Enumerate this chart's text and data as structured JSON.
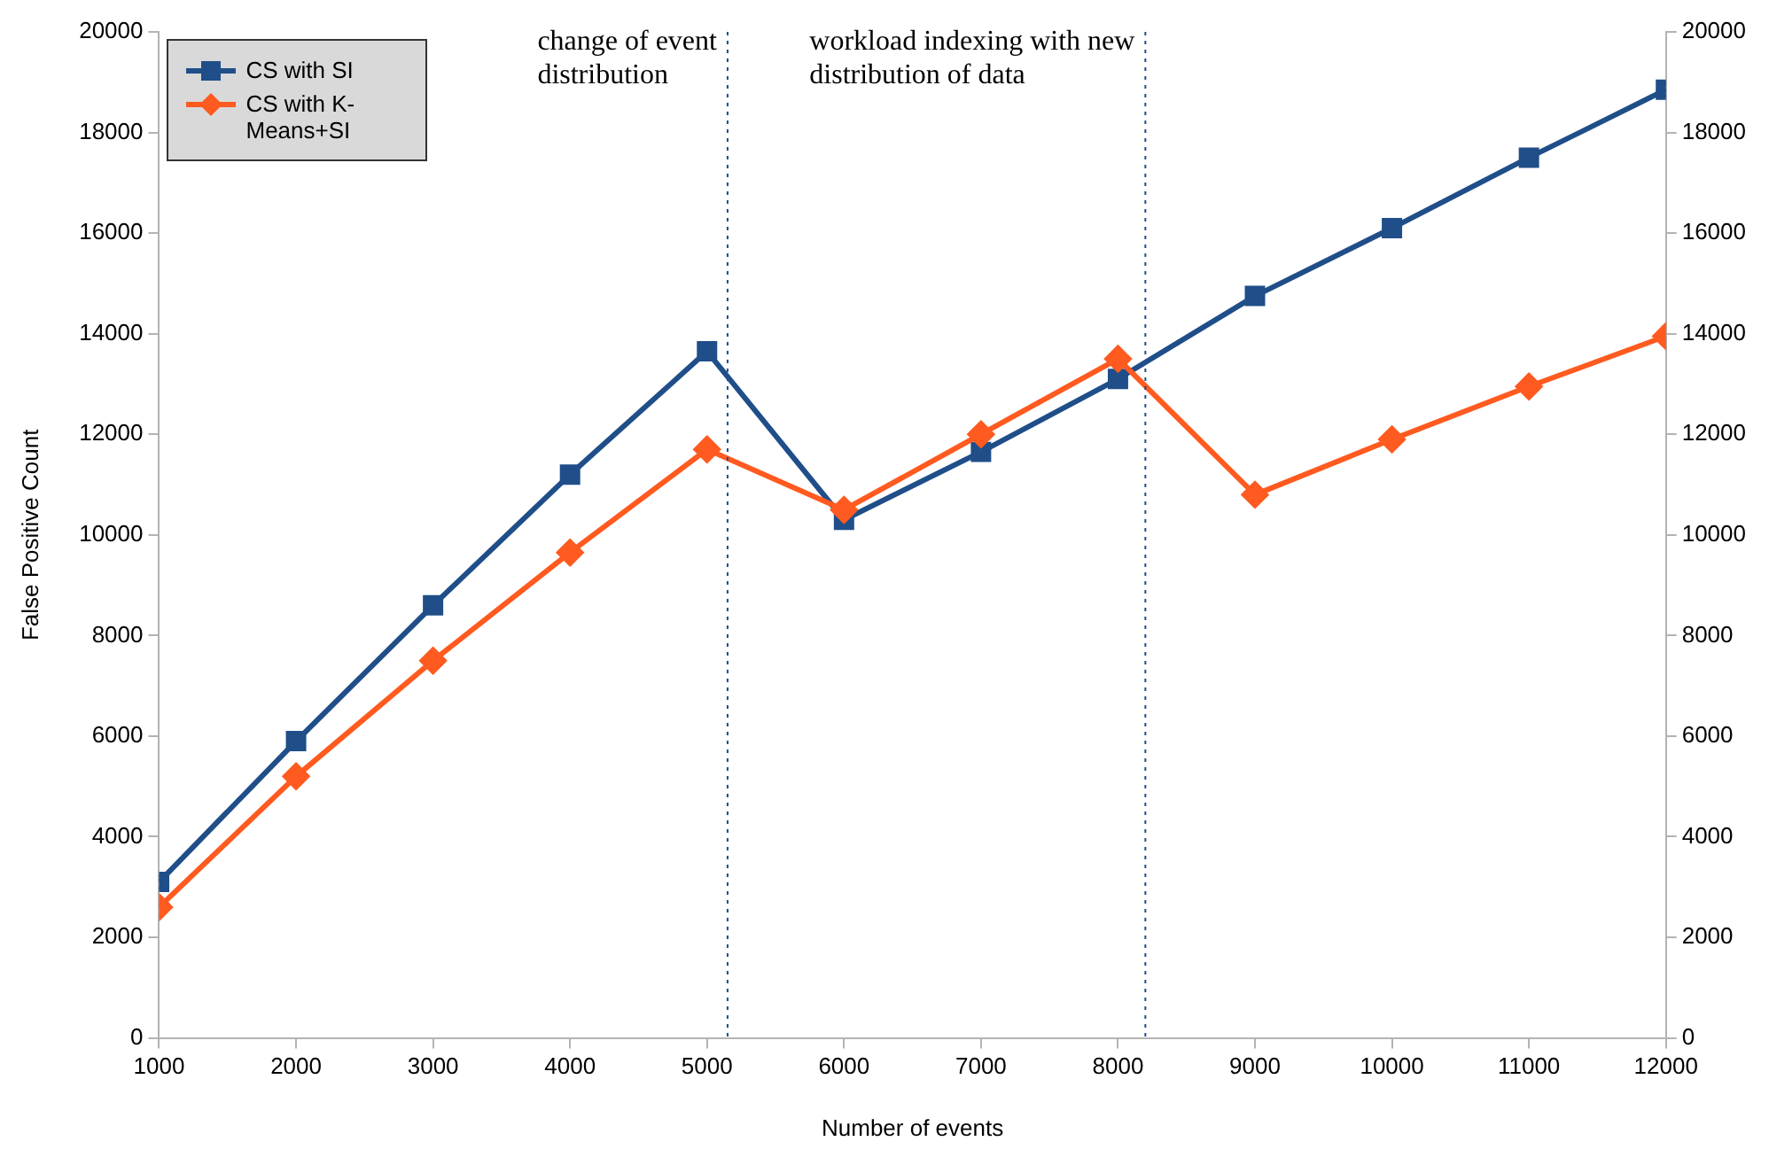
{
  "chart_data": {
    "type": "line",
    "xlabel": "Number of events",
    "ylabel": "False Positive Count",
    "x": [
      1000,
      2000,
      3000,
      4000,
      5000,
      6000,
      7000,
      8000,
      9000,
      10000,
      11000,
      12000
    ],
    "series": [
      {
        "name": "CS with SI",
        "color": "#1f4e89",
        "marker": "square",
        "values": [
          3100,
          5900,
          8600,
          11200,
          13650,
          10300,
          11650,
          13100,
          14750,
          16100,
          17500,
          18850
        ]
      },
      {
        "name": "CS with K-Means+SI",
        "color": "#ff5a1f",
        "marker": "diamond",
        "values": [
          2600,
          5200,
          7500,
          9650,
          11700,
          10500,
          12000,
          13500,
          10800,
          11900,
          12950,
          13950
        ]
      }
    ],
    "xlim": [
      1000,
      12000
    ],
    "xticks": [
      1000,
      2000,
      3000,
      4000,
      5000,
      6000,
      7000,
      8000,
      9000,
      10000,
      11000,
      12000
    ],
    "ylim": [
      0,
      20000
    ],
    "yticks": [
      0,
      2000,
      4000,
      6000,
      8000,
      10000,
      12000,
      14000,
      16000,
      18000,
      20000
    ],
    "y2lim": [
      0,
      20000
    ],
    "y2ticks": [
      0,
      2000,
      4000,
      6000,
      8000,
      10000,
      12000,
      14000,
      16000,
      18000,
      20000
    ],
    "ref_lines": [
      {
        "axis": "x",
        "value": 5150,
        "label": "change of event distribution",
        "color": "#1f4e89",
        "line_style": "dotted"
      },
      {
        "axis": "x",
        "value": 8200,
        "label": "workload indexing with new distribution of data",
        "color": "#1f4e89",
        "line_style": "dotted"
      }
    ],
    "grid": false,
    "legend": "top left"
  }
}
